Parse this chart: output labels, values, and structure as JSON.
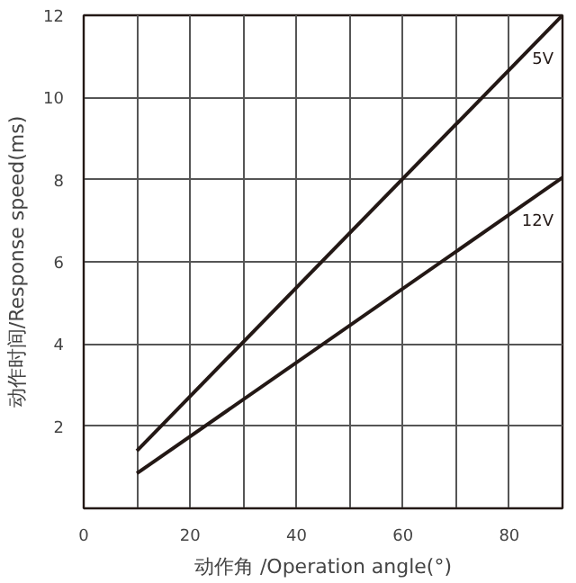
{
  "chart_data": {
    "type": "line",
    "xlabel": "动作角 /Operation angle(°)",
    "ylabel": "动作时间/Response speed(ms)",
    "xlim": [
      0,
      90
    ],
    "ylim": [
      0,
      12
    ],
    "xticks": [
      0,
      {
        "value": 10,
        "label": null
      },
      20,
      {
        "value": 30,
        "label": null
      },
      40,
      {
        "value": 50,
        "label": null
      },
      60,
      {
        "value": 70,
        "label": null
      },
      80
    ],
    "yticks": [
      2,
      4,
      6,
      8,
      10,
      12
    ],
    "grid": true,
    "marker": "none",
    "line_style": "solid",
    "x": [
      10,
      90
    ],
    "series": [
      {
        "name": "5V",
        "color": "#231815",
        "values": [
          1.4,
          12
        ]
      },
      {
        "name": "12V",
        "color": "#231815",
        "values": [
          0.85,
          8.05
        ]
      }
    ]
  }
}
